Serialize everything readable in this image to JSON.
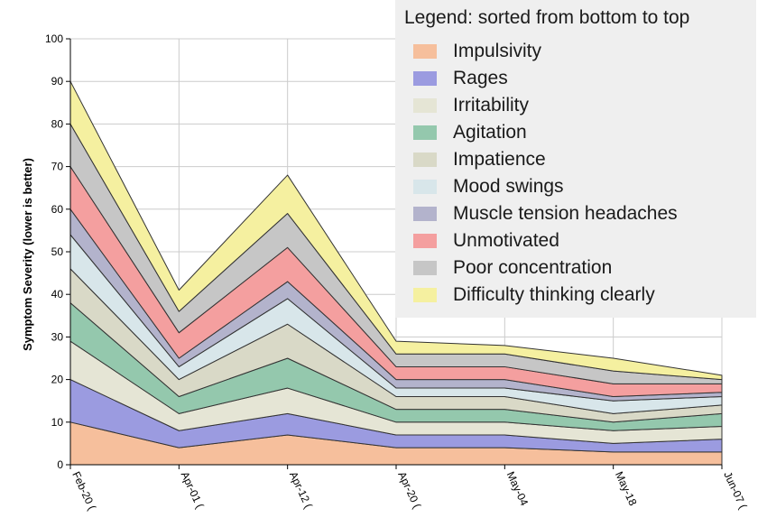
{
  "chart_data": {
    "type": "area",
    "stacked": true,
    "title": "",
    "xlabel": "",
    "ylabel": "Symptom Severity (lower is better)",
    "ylim": [
      0,
      100
    ],
    "yticks": [
      0,
      10,
      20,
      30,
      40,
      50,
      60,
      70,
      80,
      90,
      100
    ],
    "categories": [
      "Feb-20 (",
      "Apr-01 (",
      "Apr-12 (",
      "Apr-20 (",
      "May-04",
      "May-18",
      "Jun-07 ("
    ],
    "grid": true,
    "legend": {
      "title": "Legend: sorted from bottom to top",
      "placement": "top-right"
    },
    "series": [
      {
        "name": "Impulsivity",
        "color": "#f6bf9c",
        "values": [
          10,
          4,
          7,
          4,
          4,
          3,
          3
        ]
      },
      {
        "name": "Rages",
        "color": "#9b9be0",
        "values": [
          10,
          4,
          5,
          3,
          3,
          2,
          3
        ]
      },
      {
        "name": "Irritability",
        "color": "#e5e5d5",
        "values": [
          9,
          4,
          6,
          3,
          3,
          3,
          3
        ]
      },
      {
        "name": "Agitation",
        "color": "#94c8ad",
        "values": [
          9,
          4,
          7,
          3,
          3,
          2,
          3
        ]
      },
      {
        "name": "Impatience",
        "color": "#d9d9c7",
        "values": [
          8,
          4,
          8,
          3,
          3,
          2,
          2
        ]
      },
      {
        "name": "Mood swings",
        "color": "#d8e6ea",
        "values": [
          8,
          3,
          6,
          2,
          2,
          3,
          2
        ]
      },
      {
        "name": "Muscle tension headaches",
        "color": "#b3b3cc",
        "values": [
          6,
          2,
          4,
          2,
          2,
          1,
          1
        ]
      },
      {
        "name": "Unmotivated",
        "color": "#f49f9f",
        "values": [
          10,
          6,
          8,
          3,
          3,
          3,
          2
        ]
      },
      {
        "name": "Poor concentration",
        "color": "#c6c6c6",
        "values": [
          10,
          5,
          8,
          3,
          3,
          3,
          1
        ]
      },
      {
        "name": "Difficulty thinking clearly",
        "color": "#f5f0a0",
        "values": [
          10,
          5,
          9,
          3,
          2,
          3,
          1
        ]
      }
    ]
  }
}
